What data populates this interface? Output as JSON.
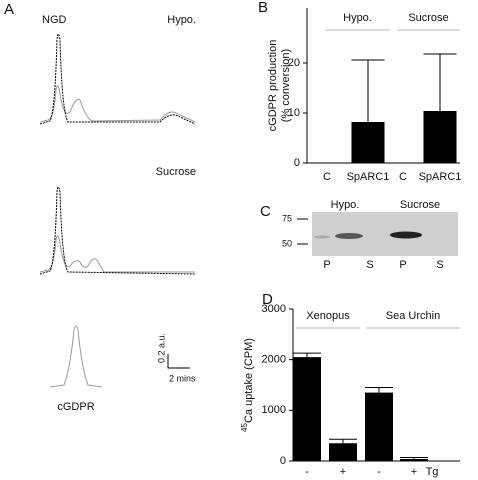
{
  "panel_a": {
    "label": "A",
    "peak_label": "NGD",
    "conditions": [
      "Hypo.",
      "Sucrose"
    ],
    "scale_y": "0.2 a.u.",
    "scale_x": "2 mins",
    "standard": "cGDPR"
  },
  "panel_c": {
    "label": "C",
    "markers": [
      75,
      50
    ],
    "conditions": [
      "Hypo.",
      "Sucrose"
    ],
    "lanes": [
      "P",
      "S",
      "P",
      "S"
    ]
  },
  "chart_data": [
    {
      "type": "bar",
      "label": "B",
      "ylabel": [
        "cGDPR production",
        "(% conversion)"
      ],
      "groups": [
        "Hypo.",
        "Sucrose"
      ],
      "categories": [
        "C",
        "SpARC1",
        "C",
        "SpARC1"
      ],
      "values": [
        0,
        8.2,
        0,
        10.4
      ],
      "errors": [
        null,
        12.4,
        null,
        11.4
      ],
      "color": "#000000",
      "ylim": [
        0,
        31
      ],
      "yticks": [
        0,
        10,
        20
      ]
    },
    {
      "type": "bar",
      "label": "D",
      "ylabel": {
        "isotope": "45",
        "text": "Ca uptake (CPM)"
      },
      "xlabel": "Tg",
      "groups": [
        "Xenopus",
        "Sea Urchin"
      ],
      "categories": [
        "-",
        "+",
        "-",
        "+"
      ],
      "values": [
        2050,
        350,
        1350,
        40
      ],
      "errors": [
        80,
        80,
        100,
        30
      ],
      "color": "#000000",
      "ylim": [
        0,
        3000
      ],
      "yticks": [
        0,
        1000,
        2000,
        3000
      ]
    }
  ]
}
